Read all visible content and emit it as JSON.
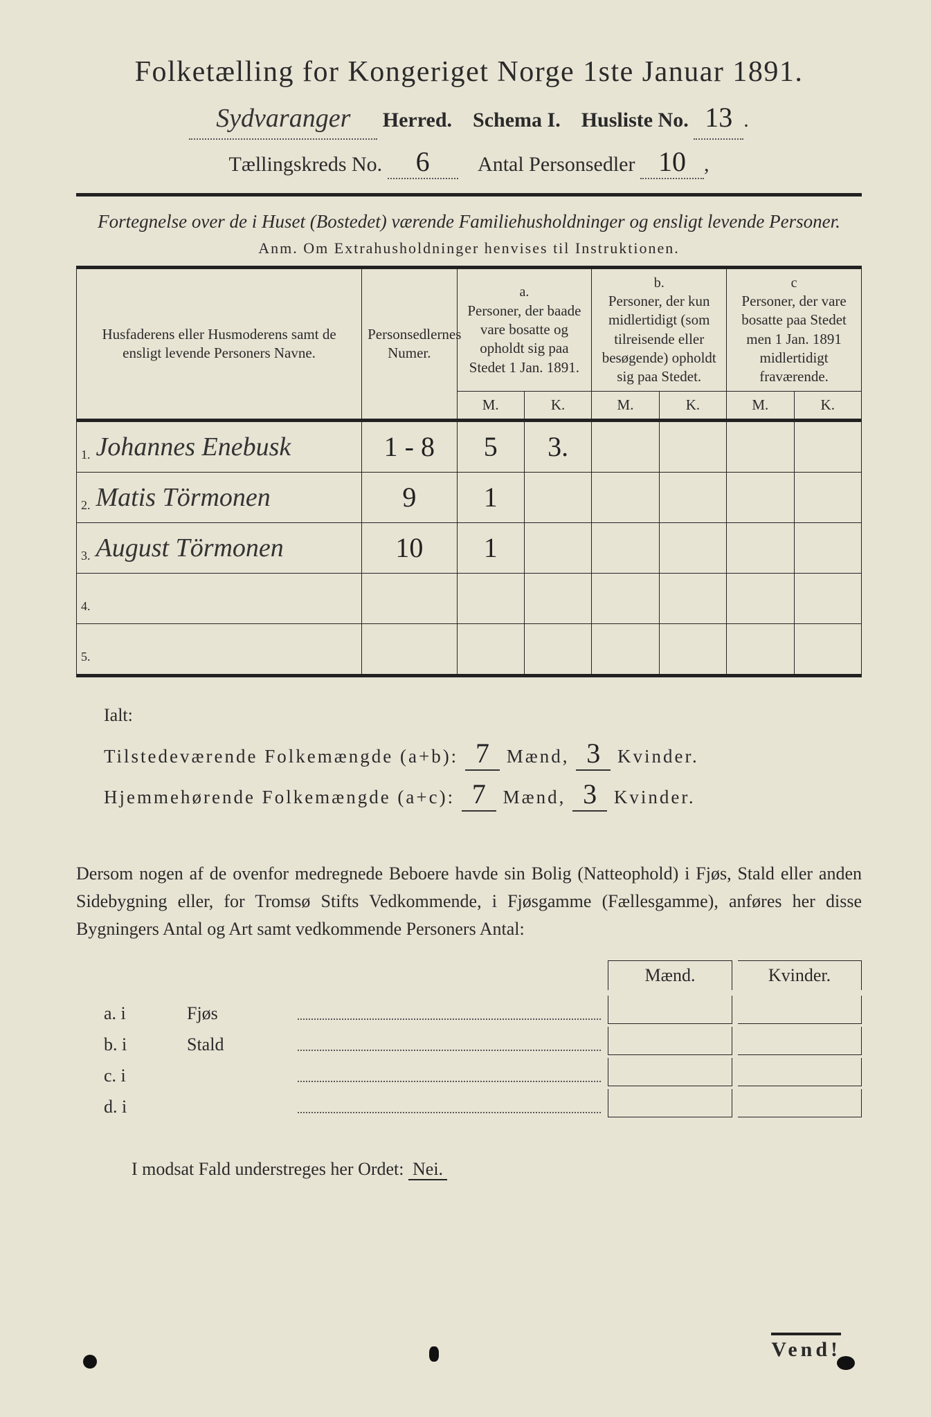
{
  "title": "Folketælling for Kongeriget Norge 1ste Januar 1891.",
  "herred_value": "Sydvaranger",
  "herred_label": " Herred.",
  "schema_label": "Schema I.",
  "husliste_label": "Husliste No.",
  "husliste_no": "13",
  "kreds_label": "Tællingskreds No.",
  "kreds_no": "6",
  "antal_label": "Antal Personsedler",
  "antal_no": "10",
  "fortegnelse": "Fortegnelse over de i Huset (Bostedet) værende Familiehusholdninger og ensligt levende Personer.",
  "anm": "Anm.  Om Extrahusholdninger henvises til Instruktionen.",
  "colheads": {
    "name": "Husfaderens eller Husmoderens samt de ensligt levende Personers Navne.",
    "numer": "Personsedlernes Numer.",
    "a_letter": "a.",
    "a_text": "Personer, der baade vare bosatte og opholdt sig paa Stedet 1 Jan. 1891.",
    "b_letter": "b.",
    "b_text": "Personer, der kun midlertidigt (som tilreisende eller besøgende) opholdt sig paa Stedet.",
    "c_letter": "c",
    "c_text": "Personer, der vare bosatte paa Stedet men 1 Jan. 1891 midlertidigt fraværende.",
    "m": "M.",
    "k": "K."
  },
  "rows": [
    {
      "n": "1.",
      "name": "Johannes Enebusk",
      "numer": "1 - 8",
      "am": "5",
      "ak": "3.",
      "bm": "",
      "bk": "",
      "cm": "",
      "ck": ""
    },
    {
      "n": "2.",
      "name": "Matis Törmonen",
      "numer": "9",
      "am": "1",
      "ak": "",
      "bm": "",
      "bk": "",
      "cm": "",
      "ck": ""
    },
    {
      "n": "3.",
      "name": "August Törmonen",
      "numer": "10",
      "am": "1",
      "ak": "",
      "bm": "",
      "bk": "",
      "cm": "",
      "ck": ""
    },
    {
      "n": "4.",
      "name": "",
      "numer": "",
      "am": "",
      "ak": "",
      "bm": "",
      "bk": "",
      "cm": "",
      "ck": ""
    },
    {
      "n": "5.",
      "name": "",
      "numer": "",
      "am": "",
      "ak": "",
      "bm": "",
      "bk": "",
      "cm": "",
      "ck": ""
    }
  ],
  "ialt": "Ialt:",
  "sum1_label_a": "Tilstedeværende Folkemængde (a+b):",
  "sum1_m": "7",
  "maend": "Mænd,",
  "sum1_k": "3",
  "kvinder": "Kvinder.",
  "sum2_label": "Hjemmehørende Folkemængde (a+c):",
  "sum2_m": "7",
  "sum2_k": "3",
  "dersom": "Dersom nogen af de ovenfor medregnede Beboere havde sin Bolig (Natteophold) i Fjøs, Stald eller anden Sidebygning eller, for Tromsø Stifts Vedkommende, i Fjøsgamme (Fællesgamme), anføres her disse Bygningers Antal og Art samt vedkommende Personers Antal:",
  "bolig_m": "Mænd.",
  "bolig_k": "Kvinder.",
  "bolig": [
    {
      "l": "a.  i",
      "w": "Fjøs"
    },
    {
      "l": "b.  i",
      "w": "Stald"
    },
    {
      "l": "c.  i",
      "w": ""
    },
    {
      "l": "d.  i",
      "w": ""
    }
  ],
  "modsat_a": "I modsat Fald understreges her Ordet:",
  "modsat_nei": "Nei.",
  "vend": "Vend!"
}
